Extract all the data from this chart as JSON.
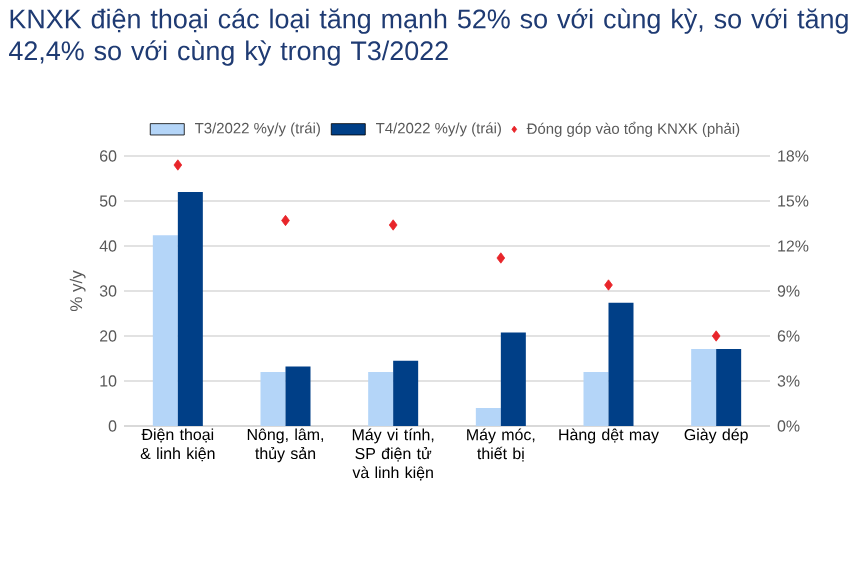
{
  "chart_data": {
    "type": "bar",
    "title": "KNXK điện thoại các loại tăng mạnh 52% so với cùng kỳ, so với tăng 42,4% so với cùng kỳ trong T3/2022",
    "ylabel": "% y/y",
    "categories": [
      "Điện thoại & linh kiện",
      "Nông, lâm, thủy sản",
      "Máy vi tính, SP điện tử và linh kiện",
      "Máy móc, thiết bị",
      "Hàng dệt may",
      "Giày dép"
    ],
    "series": [
      {
        "name": "T3/2022 %y/y (trái)",
        "color": "#b4d5f8",
        "values": [
          42.4,
          12,
          12,
          4,
          12,
          17.1
        ]
      },
      {
        "name": "T4/2022 %y/y (trái)",
        "color": "#003f87",
        "values": [
          52,
          13.2,
          14.5,
          20.8,
          27.4,
          17.1
        ]
      },
      {
        "name": "Đóng góp vào tổng KNXK (phải)",
        "type": "scatter",
        "axis": "y2",
        "color": "#e8252a",
        "marker": "diamond",
        "values": [
          17.4,
          13.7,
          13.4,
          11.2,
          9.4,
          6.0
        ]
      }
    ],
    "ylim": [
      0,
      60
    ],
    "yticks": [
      0,
      10,
      20,
      30,
      40,
      50,
      60
    ],
    "y2lim": [
      0,
      18
    ],
    "y2ticks": [
      {
        "value": 0,
        "label": "0%"
      },
      {
        "value": 3,
        "label": "3%"
      },
      {
        "value": 6,
        "label": "6%"
      },
      {
        "value": 9,
        "label": "9%"
      },
      {
        "value": 12,
        "label": "12%"
      },
      {
        "value": 15,
        "label": "15%"
      },
      {
        "value": 18,
        "label": "18%"
      }
    ],
    "grid": "y",
    "legend": "top"
  }
}
